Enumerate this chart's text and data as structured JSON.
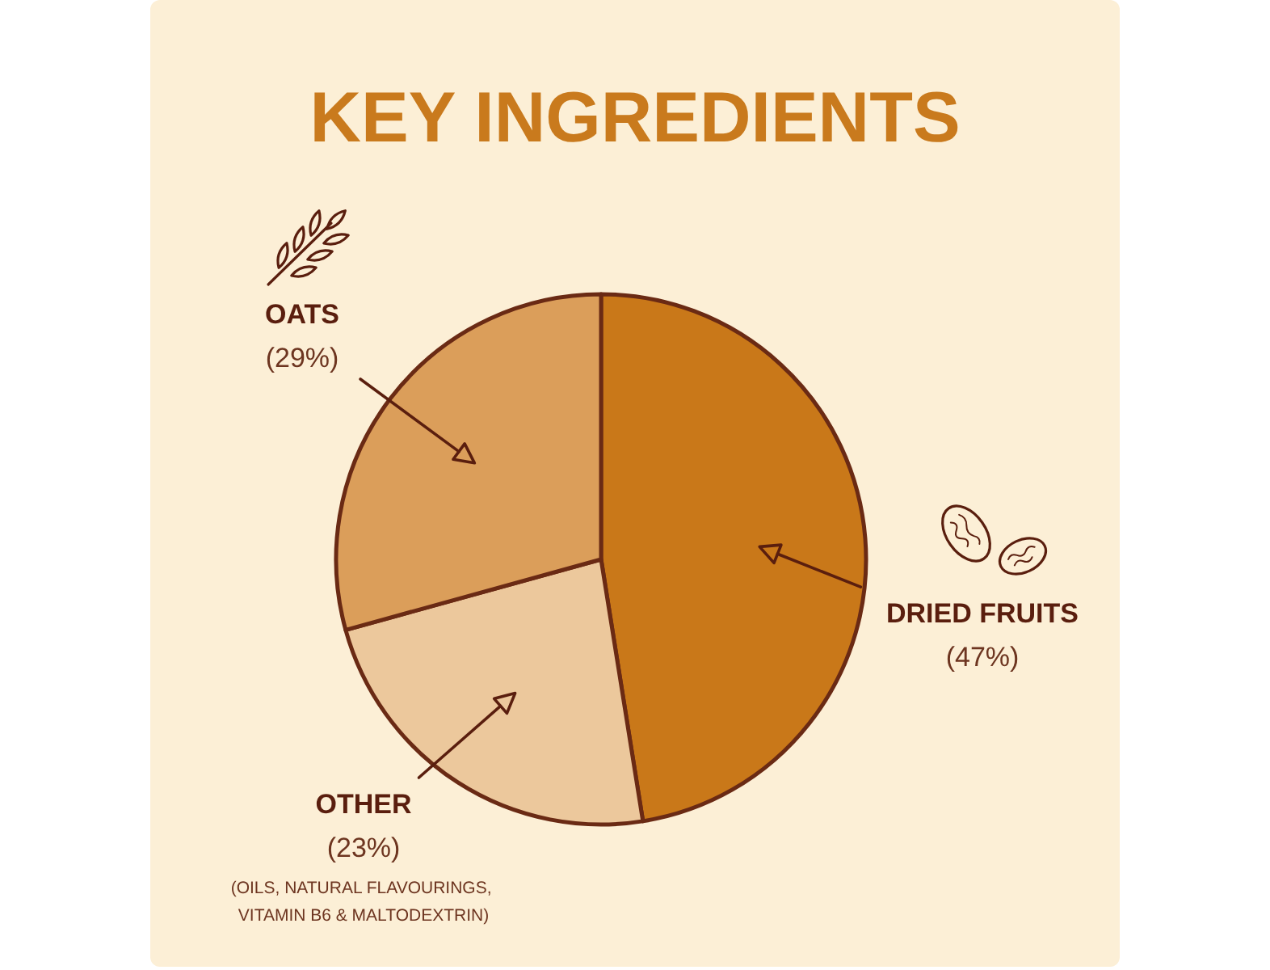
{
  "chart_data": {
    "type": "pie",
    "title": "KEY INGREDIENTS",
    "categories": [
      "DRIED FRUITS",
      "OTHER",
      "OATS"
    ],
    "values": [
      47,
      23,
      29
    ],
    "colors": [
      "#c97819",
      "#ecc89c",
      "#db9e5a"
    ],
    "value_labels": [
      "(47%)",
      "(23%)",
      "(29%)"
    ],
    "annotations": [
      "(OILS, NATURAL FLAVOURINGS, VITAMIN B6 & MALTODEXTRIN)"
    ]
  }
}
